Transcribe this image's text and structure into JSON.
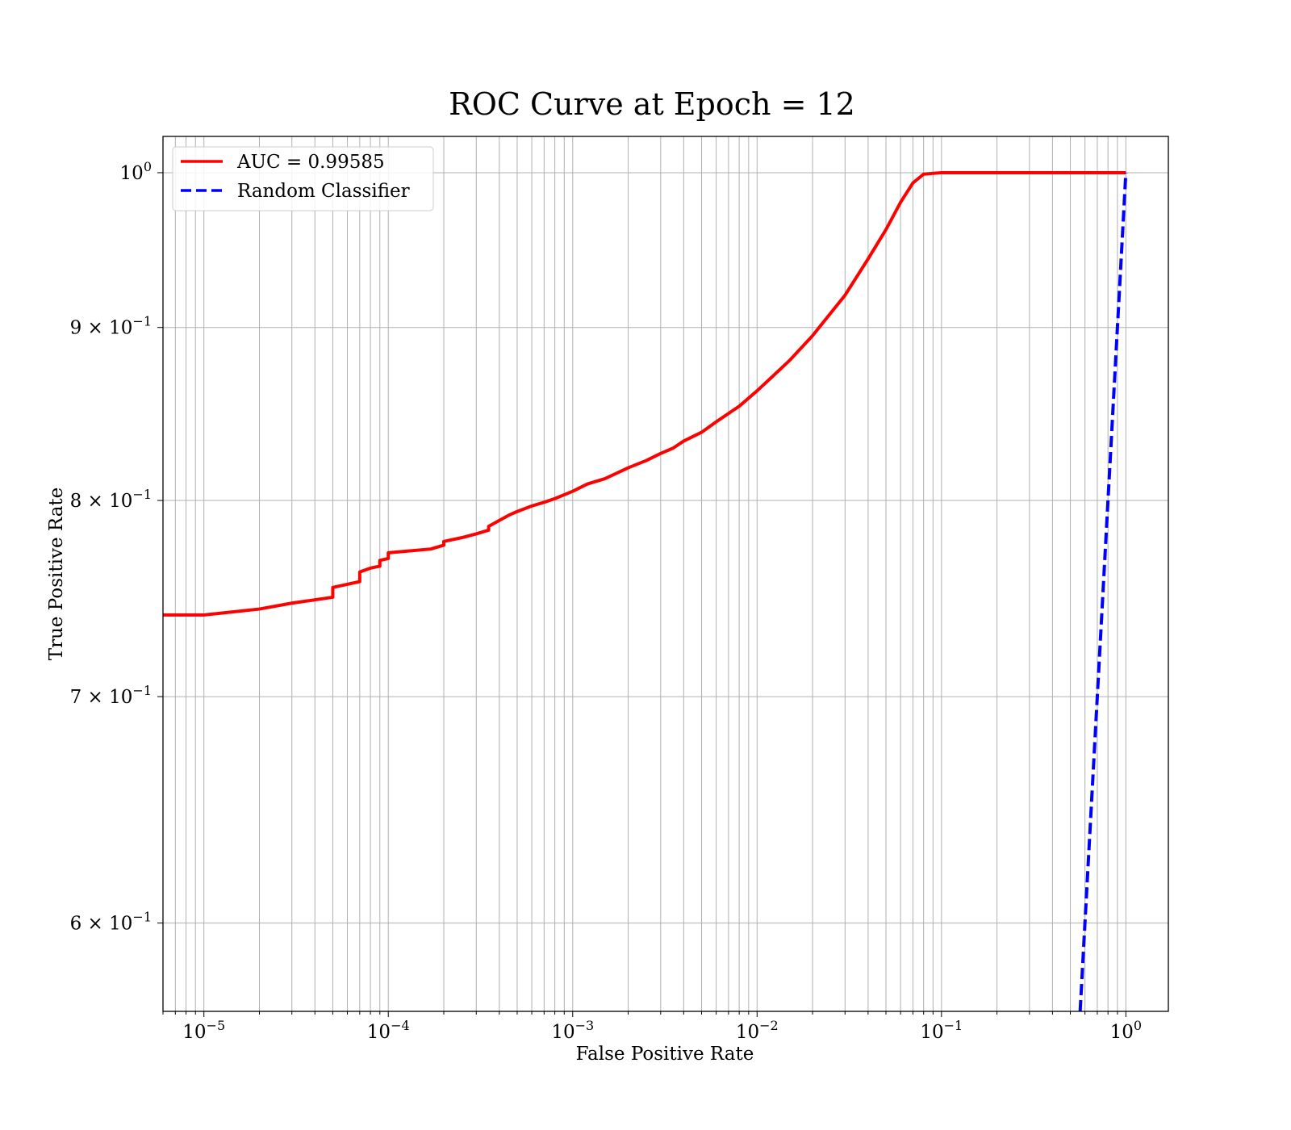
{
  "chart_data": {
    "type": "line",
    "title": "ROC Curve at Epoch = 12",
    "xlabel": "False Positive Rate",
    "ylabel": "True Positive Rate",
    "xscale": "log",
    "yscale": "log",
    "xlim": [
      6e-06,
      1.7
    ],
    "ylim": [
      0.565,
      1.025
    ],
    "grid": "both (major and minor)",
    "legend_position": "upper-left",
    "x_tick_labels": [
      {
        "exp": "−5",
        "value": 1e-05
      },
      {
        "exp": "−4",
        "value": 0.0001
      },
      {
        "exp": "−3",
        "value": 0.001
      },
      {
        "exp": "−2",
        "value": 0.01
      },
      {
        "exp": "−1",
        "value": 0.1
      },
      {
        "exp": "0",
        "value": 1
      }
    ],
    "y_tick_labels": [
      {
        "mantissa": "",
        "base": "10",
        "exp": "0",
        "value": 1.0
      },
      {
        "mantissa": "9",
        "base": "10",
        "exp": "−1",
        "value": 0.9
      },
      {
        "mantissa": "8",
        "base": "10",
        "exp": "−1",
        "value": 0.8
      },
      {
        "mantissa": "7",
        "base": "10",
        "exp": "−1",
        "value": 0.7
      },
      {
        "mantissa": "6",
        "base": "10",
        "exp": "−1",
        "value": 0.6
      }
    ],
    "series": [
      {
        "name": "AUC = 0.99585",
        "color": "#ff0000",
        "style": "solid",
        "x": [
          6e-06,
          1e-05,
          2e-05,
          3e-05,
          5e-05,
          5e-05,
          7e-05,
          7e-05,
          8e-05,
          9e-05,
          9e-05,
          0.0001,
          0.0001,
          0.00017,
          0.0002,
          0.0002,
          0.00025,
          0.0003,
          0.00035,
          0.00035,
          0.00045,
          0.0005,
          0.0006,
          0.0007,
          0.0008,
          0.001,
          0.0012,
          0.0015,
          0.002,
          0.0025,
          0.003,
          0.0035,
          0.004,
          0.005,
          0.006,
          0.008,
          0.01,
          0.012,
          0.015,
          0.02,
          0.03,
          0.04,
          0.05,
          0.06,
          0.07,
          0.08,
          0.1,
          0.2,
          0.5,
          1.0
        ],
        "y": [
          0.74,
          0.74,
          0.743,
          0.746,
          0.749,
          0.754,
          0.757,
          0.762,
          0.764,
          0.765,
          0.768,
          0.769,
          0.772,
          0.774,
          0.776,
          0.778,
          0.78,
          0.782,
          0.784,
          0.786,
          0.792,
          0.794,
          0.797,
          0.799,
          0.801,
          0.805,
          0.809,
          0.812,
          0.818,
          0.822,
          0.826,
          0.829,
          0.833,
          0.838,
          0.844,
          0.853,
          0.862,
          0.87,
          0.88,
          0.895,
          0.92,
          0.943,
          0.962,
          0.98,
          0.993,
          0.999,
          1.0,
          1.0,
          1.0,
          1.0
        ]
      },
      {
        "name": "Random Classifier",
        "color": "#0000ff",
        "style": "dashed",
        "x": [
          0.565,
          1.0
        ],
        "y": [
          0.565,
          1.0
        ]
      }
    ]
  }
}
